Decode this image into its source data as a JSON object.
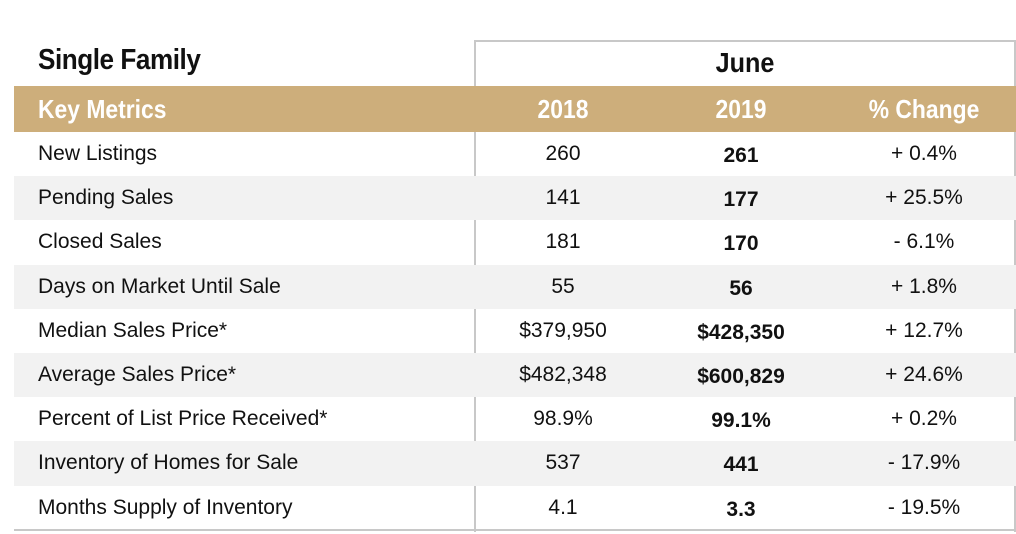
{
  "section_title": "Single Family",
  "period_title": "June",
  "header": {
    "metric_label": "Key Metrics",
    "year1": "2018",
    "year2": "2019",
    "change": "% Change"
  },
  "rows": [
    {
      "metric": "New Listings",
      "y1": "260",
      "y2": "261",
      "change": "+ 0.4%"
    },
    {
      "metric": "Pending Sales",
      "y1": "141",
      "y2": "177",
      "change": "+ 25.5%"
    },
    {
      "metric": "Closed Sales",
      "y1": "181",
      "y2": "170",
      "change": "- 6.1%"
    },
    {
      "metric": "Days on Market Until Sale",
      "y1": "55",
      "y2": "56",
      "change": "+ 1.8%"
    },
    {
      "metric": "Median Sales Price*",
      "y1": "$379,950",
      "y2": "$428,350",
      "change": "+ 12.7%"
    },
    {
      "metric": "Average Sales Price*",
      "y1": "$482,348",
      "y2": "$600,829",
      "change": "+ 24.6%"
    },
    {
      "metric": "Percent of List Price Received*",
      "y1": "98.9%",
      "y2": "99.1%",
      "change": "+ 0.2%"
    },
    {
      "metric": "Inventory of Homes for Sale",
      "y1": "537",
      "y2": "441",
      "change": "- 17.9%"
    },
    {
      "metric": "Months Supply of Inventory",
      "y1": "4.1",
      "y2": "3.3",
      "change": "- 19.5%"
    }
  ],
  "colors": {
    "header_bg": "#cdae7b",
    "alt_row_bg": "#f2f2f2",
    "border": "#c8c8c8"
  }
}
